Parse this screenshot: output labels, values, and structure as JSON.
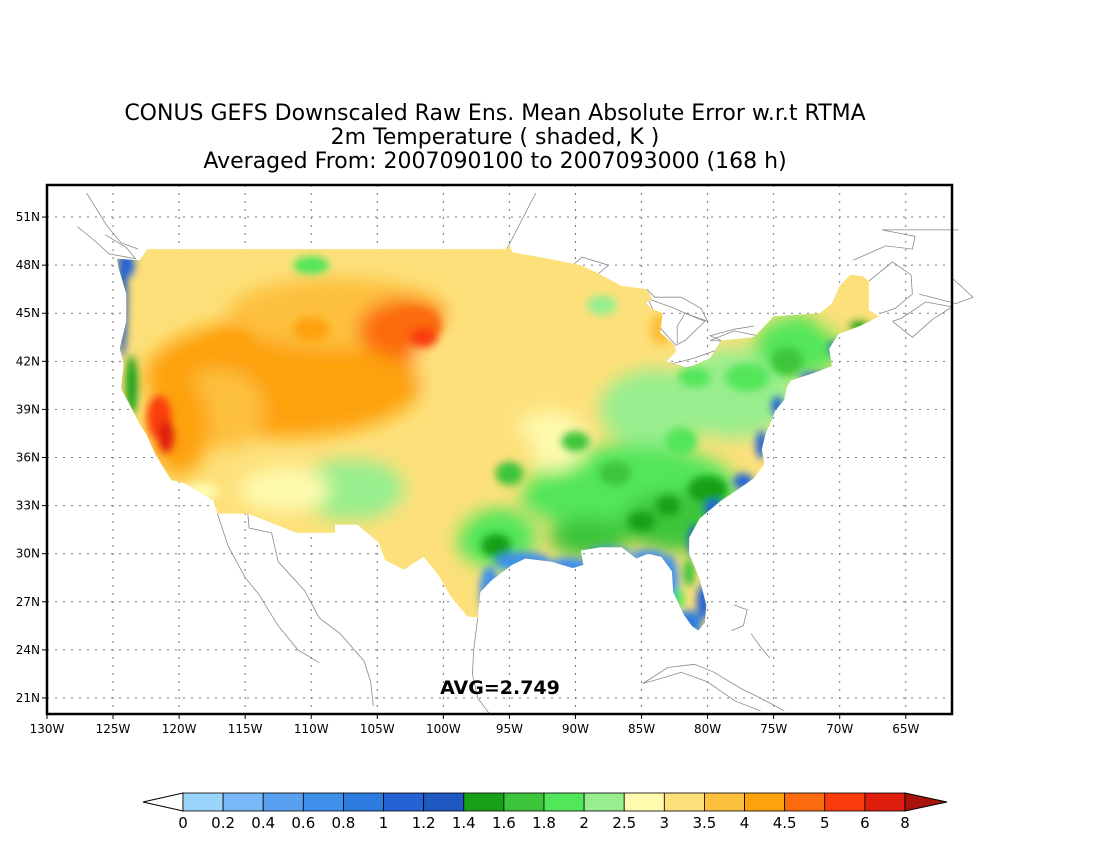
{
  "title": {
    "line1": "CONUS GEFS Downscaled Raw Ens. Mean Absolute Error w.r.t RTMA",
    "line2": "2m Temperature ( shaded, K )",
    "line3": "Averaged From: 2007090100 to 2007093000 (168 h)"
  },
  "map": {
    "lat_ticks": [
      "51N",
      "48N",
      "45N",
      "42N",
      "39N",
      "36N",
      "33N",
      "30N",
      "27N",
      "24N",
      "21N"
    ],
    "lon_ticks": [
      "130W",
      "125W",
      "120W",
      "115W",
      "110W",
      "105W",
      "100W",
      "95W",
      "90W",
      "85W",
      "80W",
      "75W",
      "70W",
      "65W"
    ],
    "lat_values": [
      51,
      48,
      45,
      42,
      39,
      36,
      33,
      30,
      27,
      24,
      21
    ],
    "lon_values": [
      -130,
      -125,
      -120,
      -115,
      -110,
      -105,
      -100,
      -95,
      -90,
      -85,
      -80,
      -75,
      -70,
      -65
    ],
    "extent": {
      "lon_min": -130,
      "lon_max": -61.5,
      "lat_min": 20,
      "lat_max": 53
    },
    "grid": true,
    "annotation": "AVG=2.749"
  },
  "colorbar": {
    "labels": [
      "0",
      "0.2",
      "0.4",
      "0.6",
      "0.8",
      "1",
      "1.2",
      "1.4",
      "1.6",
      "1.8",
      "2",
      "2.5",
      "3",
      "3.5",
      "4",
      "4.5",
      "5",
      "6",
      "8"
    ],
    "colors": [
      "#9bd4fb",
      "#78b8f7",
      "#57a1f0",
      "#3f90ea",
      "#2d7ce0",
      "#2462d6",
      "#1f58c0",
      "#17a018",
      "#3cc53a",
      "#52e65a",
      "#98ee8e",
      "#fefaae",
      "#fde07a",
      "#fdc03c",
      "#fda20c",
      "#fc6b10",
      "#fa3c0c",
      "#df1d0d",
      "#a8140c"
    ],
    "under_color": "#ffffff",
    "over_color": "#a8140c"
  }
}
